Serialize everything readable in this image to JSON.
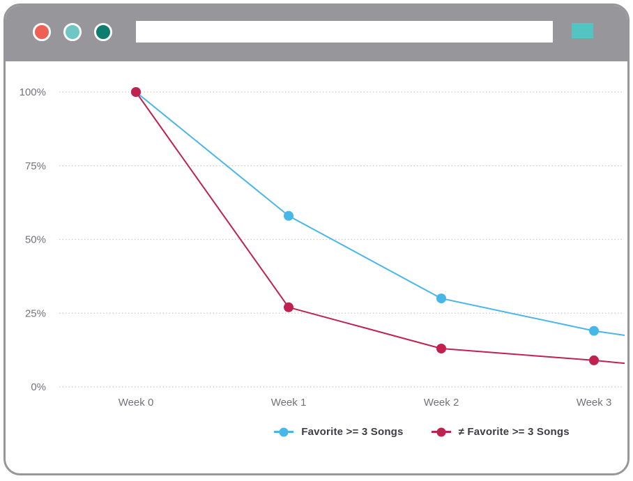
{
  "window": {
    "chrome_color": "#97979b",
    "buttons": [
      {
        "name": "close",
        "color": "#ee6055"
      },
      {
        "name": "minimize",
        "color": "#6ec7c5"
      },
      {
        "name": "maximize",
        "color": "#0e7d70"
      }
    ],
    "address_bar_value": "",
    "menu_button_color": "#52c5c3"
  },
  "chart_data": {
    "type": "line",
    "title": "",
    "xlabel": "",
    "ylabel": "",
    "categories": [
      "Week 0",
      "Week 1",
      "Week 2",
      "Week 3"
    ],
    "series": [
      {
        "name": "Favorite >= 3 Songs",
        "color": "#47b6e9",
        "values": [
          100,
          58,
          30,
          19
        ],
        "edge_value": 17.5
      },
      {
        "name": "≠ Favorite >= 3 Songs",
        "color": "#c0214e",
        "values": [
          100,
          27,
          13,
          9
        ],
        "edge_value": 8
      }
    ],
    "y_ticks": [
      {
        "label": "100%",
        "value": 100
      },
      {
        "label": "75%",
        "value": 75
      },
      {
        "label": "50%",
        "value": 50
      },
      {
        "label": "25%",
        "value": 25
      },
      {
        "label": "0%",
        "value": 0
      }
    ],
    "ylim": [
      0,
      100
    ],
    "grid": "dotted-horizontal",
    "gridline_color": "#c9c9c9",
    "axis_label_color": "#72727c",
    "legend_position": "bottom-center"
  }
}
